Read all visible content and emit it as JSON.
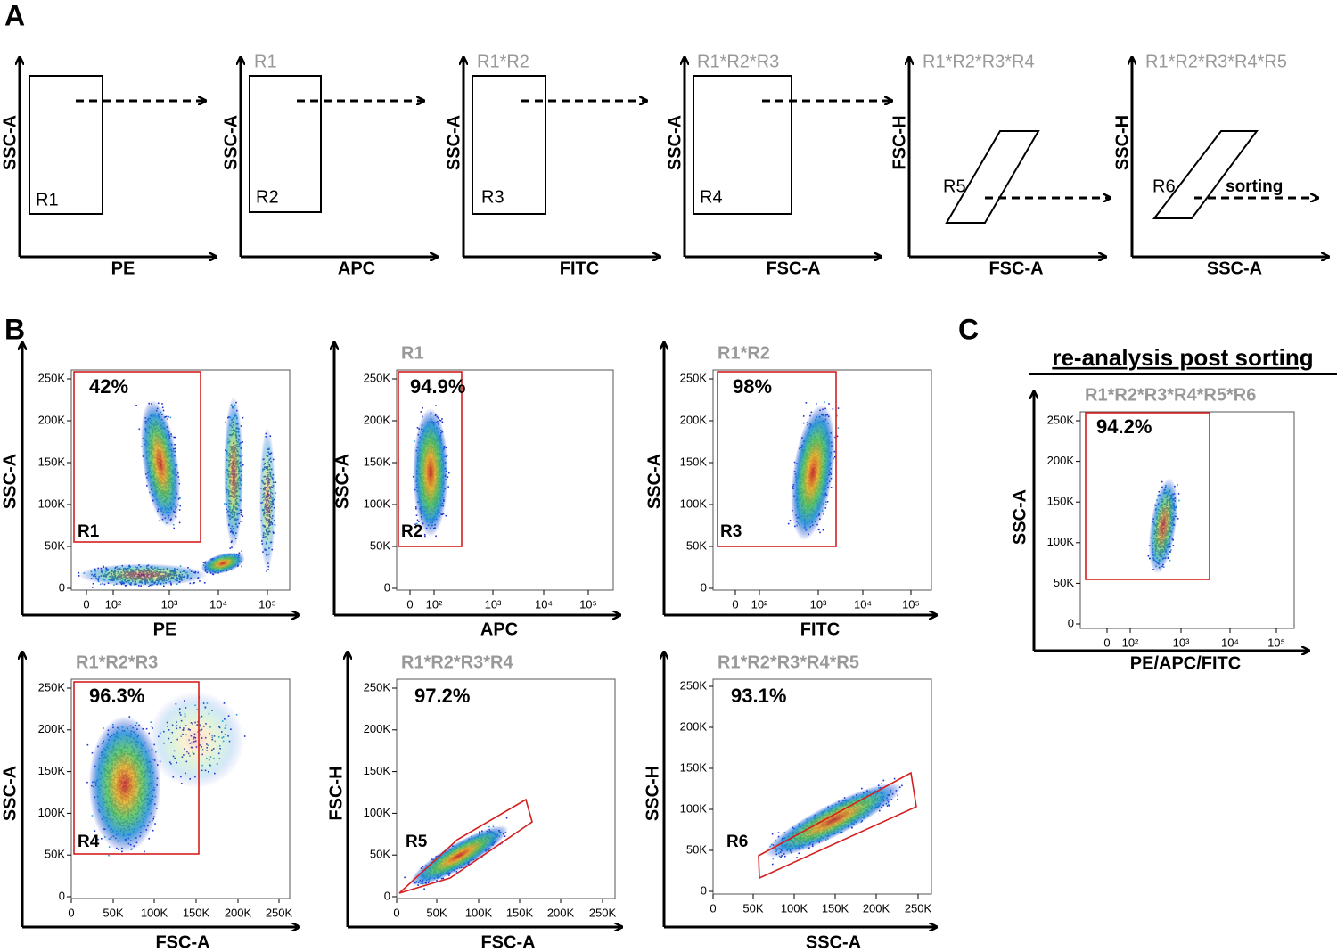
{
  "panel_a": {
    "label": "A",
    "plots": [
      {
        "y_label": "SSC-A",
        "x_label": "PE",
        "gate": "R1"
      },
      {
        "title": "R1",
        "y_label": "SSC-A",
        "x_label": "APC",
        "gate": "R2"
      },
      {
        "title": "R1*R2",
        "y_label": "SSC-A",
        "x_label": "FITC",
        "gate": "R3"
      },
      {
        "title": "R1*R2*R3",
        "y_label": "SSC-A",
        "x_label": "FSC-A",
        "gate": "R4"
      },
      {
        "title": "R1*R2*R3*R4",
        "y_label": "FSC-H",
        "x_label": "FSC-A",
        "gate": "R5"
      },
      {
        "title": "R1*R2*R3*R4*R5",
        "y_label": "SSC-H",
        "x_label": "SSC-A",
        "gate": "R6",
        "note": "sorting"
      }
    ]
  },
  "panel_b": {
    "label": "B",
    "plots": [
      {
        "y_label": "SSC-A",
        "x_label": "PE",
        "gate": "R1",
        "percent": "42%",
        "y_ticks": [
          "250K",
          "200K",
          "150K",
          "100K",
          "50K",
          "0"
        ],
        "x_ticks": [
          "0",
          "10²",
          "10³",
          "10⁴",
          "10⁵"
        ]
      },
      {
        "title": "R1",
        "y_label": "SSC-A",
        "x_label": "APC",
        "gate": "R2",
        "percent": "94.9%",
        "y_ticks": [
          "250K",
          "200K",
          "150K",
          "100K",
          "50K",
          "0"
        ],
        "x_ticks": [
          "0",
          "10²",
          "10³",
          "10⁴",
          "10⁵"
        ]
      },
      {
        "title": "R1*R2",
        "y_label": "SSC-A",
        "x_label": "FITC",
        "gate": "R3",
        "percent": "98%",
        "y_ticks": [
          "250K",
          "200K",
          "150K",
          "100K",
          "50K",
          "0"
        ],
        "x_ticks": [
          "0",
          "10²",
          "10³",
          "10⁴",
          "10⁵"
        ]
      },
      {
        "title": "R1*R2*R3",
        "y_label": "SSC-A",
        "x_label": "FSC-A",
        "gate": "R4",
        "percent": "96.3%",
        "y_ticks": [
          "250K",
          "200K",
          "150K",
          "100K",
          "50K",
          "0"
        ],
        "x_ticks": [
          "0",
          "50K",
          "100K",
          "150K",
          "200K",
          "250K"
        ]
      },
      {
        "title": "R1*R2*R3*R4",
        "y_label": "FSC-H",
        "x_label": "FSC-A",
        "gate": "R5",
        "percent": "97.2%",
        "y_ticks": [
          "250K",
          "200K",
          "150K",
          "100K",
          "50K",
          "0"
        ],
        "x_ticks": [
          "0",
          "50K",
          "100K",
          "150K",
          "200K",
          "250K"
        ]
      },
      {
        "title": "R1*R2*R3*R4*R5",
        "y_label": "SSC-H",
        "x_label": "SSC-A",
        "gate": "R6",
        "percent": "93.1%",
        "y_ticks": [
          "250K",
          "200K",
          "150K",
          "100K",
          "50K",
          "0"
        ],
        "x_ticks": [
          "0",
          "50K",
          "100K",
          "150K",
          "200K",
          "250K"
        ]
      }
    ]
  },
  "panel_c": {
    "label": "C",
    "heading": "re-analysis post sorting",
    "plot": {
      "title": "R1*R2*R3*R4*R5*R6",
      "y_label": "SSC-A",
      "x_label": "PE/APC/FITC",
      "percent": "94.2%",
      "y_ticks": [
        "250K",
        "200K",
        "150K",
        "100K",
        "50K",
        "0"
      ],
      "x_ticks": [
        "0",
        "10²",
        "10³",
        "10⁴",
        "10⁵"
      ]
    }
  }
}
